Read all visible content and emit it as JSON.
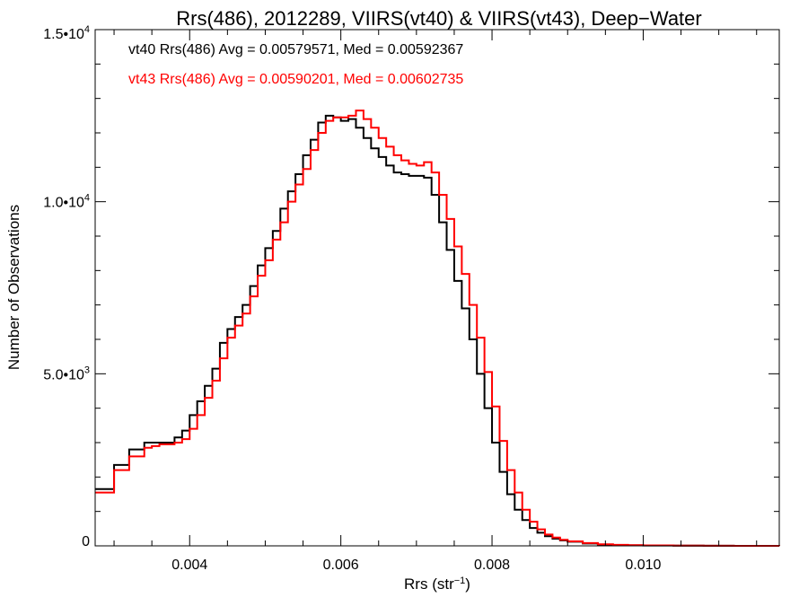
{
  "chart_data": {
    "type": "line",
    "title": "Rrs(486), 2012289, VIIRS(vt40) & VIIRS(vt43), Deep−Water",
    "xlabel": "Rrs (str",
    "xlabel_sup": "−1",
    "xlabel_tail": ")",
    "ylabel": "Number of Observations",
    "xlim": [
      0.00275,
      0.0118
    ],
    "ylim": [
      0,
      15000
    ],
    "xticks": [
      {
        "value": 0.004,
        "label": "0.004"
      },
      {
        "value": 0.006,
        "label": "0.006"
      },
      {
        "value": 0.008,
        "label": "0.008"
      },
      {
        "value": 0.01,
        "label": "0.010"
      }
    ],
    "yticks": [
      {
        "value": 0,
        "label": "0",
        "sup": ""
      },
      {
        "value": 5000,
        "label": "5.0•10",
        "sup": "3"
      },
      {
        "value": 10000,
        "label": "1.0•10",
        "sup": "4"
      },
      {
        "value": 15000,
        "label": "1.5•10",
        "sup": "4"
      }
    ],
    "annotations": [
      {
        "text": "vt40 Rrs(486) Avg = 0.00579571, Med = 0.00592367",
        "color": "#000000"
      },
      {
        "text": "vt43 Rrs(486) Avg = 0.00590201, Med = 0.00602735",
        "color": "#ff0000"
      }
    ],
    "series": [
      {
        "color": "#000000",
        "x": [
          0.00275,
          0.003,
          0.0032,
          0.0034,
          0.0035,
          0.0036,
          0.0038,
          0.0039,
          0.004,
          0.0041,
          0.0042,
          0.0043,
          0.0044,
          0.0045,
          0.0046,
          0.0047,
          0.0048,
          0.0049,
          0.005,
          0.0051,
          0.0052,
          0.0053,
          0.0054,
          0.0055,
          0.0056,
          0.0057,
          0.0058,
          0.0059,
          0.006,
          0.0061,
          0.0062,
          0.0063,
          0.0064,
          0.0065,
          0.0066,
          0.0067,
          0.0068,
          0.0069,
          0.007,
          0.0071,
          0.0072,
          0.0073,
          0.0074,
          0.0075,
          0.0076,
          0.0077,
          0.0078,
          0.0079,
          0.008,
          0.0081,
          0.0082,
          0.0083,
          0.0084,
          0.0085,
          0.0086,
          0.0087,
          0.0088,
          0.0089,
          0.009,
          0.0092,
          0.0094,
          0.0096,
          0.0098,
          0.01,
          0.0104,
          0.0108,
          0.0112,
          0.0118
        ],
        "values": [
          1650,
          2350,
          2800,
          3000,
          3000,
          3000,
          3150,
          3350,
          3800,
          4200,
          4650,
          5150,
          5900,
          6300,
          6650,
          7000,
          7550,
          8150,
          8650,
          9150,
          9800,
          10300,
          10800,
          11350,
          11800,
          12300,
          12500,
          12450,
          12350,
          12400,
          12150,
          11850,
          11550,
          11300,
          11050,
          10850,
          10800,
          10750,
          10750,
          10700,
          10200,
          9400,
          8600,
          7700,
          6900,
          6000,
          5000,
          4000,
          3000,
          2150,
          1500,
          1050,
          750,
          520,
          380,
          280,
          210,
          160,
          120,
          70,
          40,
          25,
          15,
          10,
          5,
          3,
          1,
          0
        ]
      },
      {
        "color": "#ff0000",
        "x": [
          0.00275,
          0.003,
          0.0032,
          0.0034,
          0.0035,
          0.0036,
          0.0038,
          0.0039,
          0.004,
          0.0041,
          0.0042,
          0.0043,
          0.0044,
          0.0045,
          0.0046,
          0.0047,
          0.0048,
          0.0049,
          0.005,
          0.0051,
          0.0052,
          0.0053,
          0.0054,
          0.0055,
          0.0056,
          0.0057,
          0.0058,
          0.0059,
          0.006,
          0.0061,
          0.0062,
          0.0063,
          0.0064,
          0.0065,
          0.0066,
          0.0067,
          0.0068,
          0.0069,
          0.007,
          0.0071,
          0.0072,
          0.0073,
          0.0074,
          0.0075,
          0.0076,
          0.0077,
          0.0078,
          0.0079,
          0.008,
          0.0081,
          0.0082,
          0.0083,
          0.0084,
          0.0085,
          0.0086,
          0.0087,
          0.0088,
          0.0089,
          0.009,
          0.0092,
          0.0094,
          0.0096,
          0.0098,
          0.01,
          0.0104,
          0.0108,
          0.0112,
          0.0118
        ],
        "values": [
          1550,
          2200,
          2600,
          2850,
          2900,
          2950,
          3000,
          3100,
          3400,
          3800,
          4300,
          4800,
          5450,
          6050,
          6400,
          6750,
          7250,
          7850,
          8300,
          8900,
          9400,
          10000,
          10500,
          10950,
          11500,
          12000,
          12350,
          12450,
          12450,
          12500,
          12650,
          12400,
          12150,
          11850,
          11600,
          11350,
          11200,
          11100,
          11050,
          11150,
          10850,
          10200,
          9500,
          8700,
          7900,
          7000,
          6050,
          5050,
          4050,
          3050,
          2200,
          1550,
          1050,
          700,
          480,
          330,
          240,
          175,
          130,
          80,
          45,
          28,
          18,
          12,
          6,
          3,
          1,
          0
        ]
      }
    ]
  }
}
